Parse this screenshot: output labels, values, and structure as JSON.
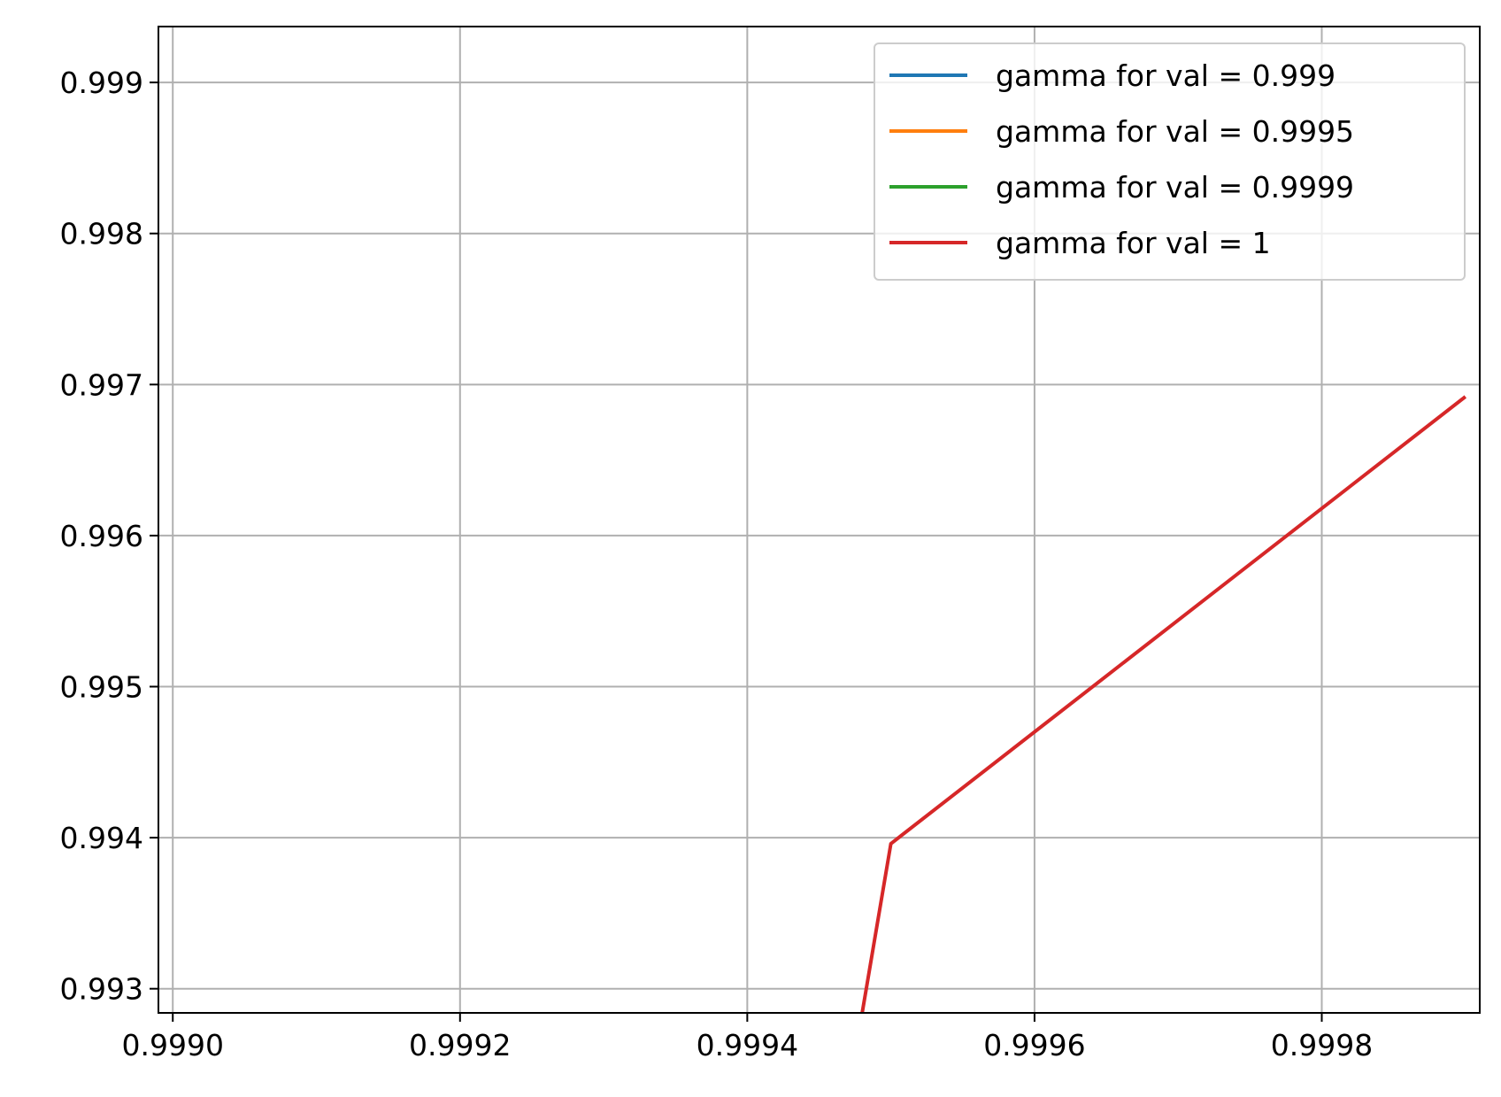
{
  "chart_data": {
    "type": "line",
    "title": "",
    "xlabel": "",
    "ylabel": "",
    "xlim": [
      0.99899,
      0.99991
    ],
    "ylim": [
      0.99284,
      0.99937
    ],
    "xticks": [
      0.999,
      0.9992,
      0.9994,
      0.9996,
      0.9998
    ],
    "xtick_labels": [
      "0.9990",
      "0.9992",
      "0.9994",
      "0.9996",
      "0.9998"
    ],
    "yticks": [
      0.993,
      0.994,
      0.995,
      0.996,
      0.997,
      0.998,
      0.999
    ],
    "ytick_labels": [
      "0.993",
      "0.994",
      "0.995",
      "0.996",
      "0.997",
      "0.998",
      "0.999"
    ],
    "grid": true,
    "legend_position": "top-right",
    "series": [
      {
        "name": "gamma for val = 0.999",
        "color": "#1f77b4",
        "x": [],
        "y": []
      },
      {
        "name": "gamma for val = 0.9995",
        "color": "#ff7f0e",
        "x": [],
        "y": []
      },
      {
        "name": "gamma for val = 0.9999",
        "color": "#2ca02c",
        "x": [],
        "y": []
      },
      {
        "name": "gamma for val = 1",
        "color": "#d62728",
        "x": [
          0.99948,
          0.9995,
          0.9999
        ],
        "y": [
          0.99284,
          0.99396,
          0.99692
        ]
      }
    ]
  }
}
